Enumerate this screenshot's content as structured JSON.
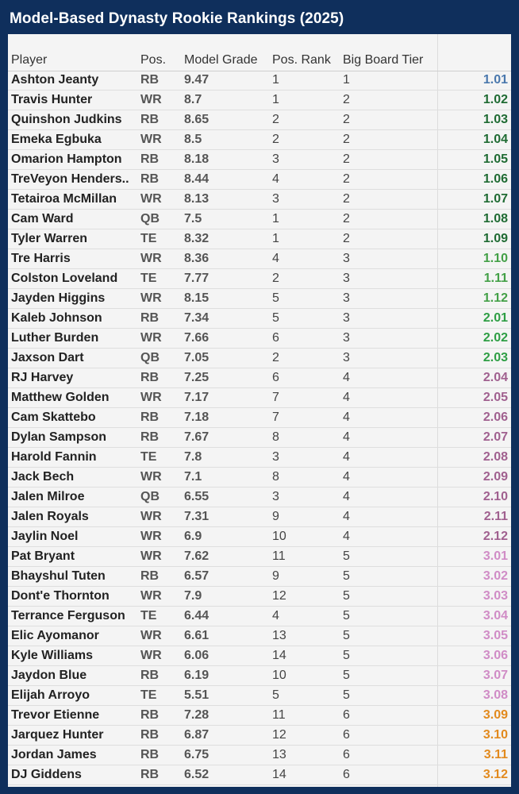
{
  "title": "Model-Based Dynasty Rookie Rankings (2025)",
  "columns": [
    "Player",
    "Pos.",
    "Model Grade",
    "Pos. Rank",
    "Big Board Tier",
    ""
  ],
  "pick_colors": {
    "1.01": "#4a78ad",
    "round1": "#1f6b33",
    "round1_late": "#43a047",
    "round2_early": "#2e9e44",
    "round2": "#a0608f",
    "round3": "#d08cc6",
    "round3_late": "#e28a1e"
  },
  "rows": [
    {
      "player": "Ashton Jeanty",
      "pos": "RB",
      "grade": "9.47",
      "pos_rank": "1",
      "tier": "1",
      "pick": "1.01",
      "color": "#4a78ad"
    },
    {
      "player": "Travis Hunter",
      "pos": "WR",
      "grade": "8.7",
      "pos_rank": "1",
      "tier": "2",
      "pick": "1.02",
      "color": "#1f6b33"
    },
    {
      "player": "Quinshon Judkins",
      "pos": "RB",
      "grade": "8.65",
      "pos_rank": "2",
      "tier": "2",
      "pick": "1.03",
      "color": "#1f6b33"
    },
    {
      "player": "Emeka Egbuka",
      "pos": "WR",
      "grade": "8.5",
      "pos_rank": "2",
      "tier": "2",
      "pick": "1.04",
      "color": "#1f6b33"
    },
    {
      "player": "Omarion Hampton",
      "pos": "RB",
      "grade": "8.18",
      "pos_rank": "3",
      "tier": "2",
      "pick": "1.05",
      "color": "#1f6b33"
    },
    {
      "player": "TreVeyon Henders..",
      "pos": "RB",
      "grade": "8.44",
      "pos_rank": "4",
      "tier": "2",
      "pick": "1.06",
      "color": "#1f6b33"
    },
    {
      "player": "Tetairoa McMillan",
      "pos": "WR",
      "grade": "8.13",
      "pos_rank": "3",
      "tier": "2",
      "pick": "1.07",
      "color": "#1f6b33"
    },
    {
      "player": "Cam Ward",
      "pos": "QB",
      "grade": "7.5",
      "pos_rank": "1",
      "tier": "2",
      "pick": "1.08",
      "color": "#1f6b33"
    },
    {
      "player": "Tyler Warren",
      "pos": "TE",
      "grade": "8.32",
      "pos_rank": "1",
      "tier": "2",
      "pick": "1.09",
      "color": "#1f6b33"
    },
    {
      "player": "Tre Harris",
      "pos": "WR",
      "grade": "8.36",
      "pos_rank": "4",
      "tier": "3",
      "pick": "1.10",
      "color": "#43a047"
    },
    {
      "player": "Colston Loveland",
      "pos": "TE",
      "grade": "7.77",
      "pos_rank": "2",
      "tier": "3",
      "pick": "1.11",
      "color": "#43a047"
    },
    {
      "player": "Jayden Higgins",
      "pos": "WR",
      "grade": "8.15",
      "pos_rank": "5",
      "tier": "3",
      "pick": "1.12",
      "color": "#43a047"
    },
    {
      "player": "Kaleb Johnson",
      "pos": "RB",
      "grade": "7.34",
      "pos_rank": "5",
      "tier": "3",
      "pick": "2.01",
      "color": "#2e9e44"
    },
    {
      "player": "Luther Burden",
      "pos": "WR",
      "grade": "7.66",
      "pos_rank": "6",
      "tier": "3",
      "pick": "2.02",
      "color": "#2e9e44"
    },
    {
      "player": "Jaxson Dart",
      "pos": "QB",
      "grade": "7.05",
      "pos_rank": "2",
      "tier": "3",
      "pick": "2.03",
      "color": "#2e9e44"
    },
    {
      "player": "RJ Harvey",
      "pos": "RB",
      "grade": "7.25",
      "pos_rank": "6",
      "tier": "4",
      "pick": "2.04",
      "color": "#a0608f"
    },
    {
      "player": "Matthew Golden",
      "pos": "WR",
      "grade": "7.17",
      "pos_rank": "7",
      "tier": "4",
      "pick": "2.05",
      "color": "#a0608f"
    },
    {
      "player": "Cam Skattebo",
      "pos": "RB",
      "grade": "7.18",
      "pos_rank": "7",
      "tier": "4",
      "pick": "2.06",
      "color": "#a0608f"
    },
    {
      "player": "Dylan Sampson",
      "pos": "RB",
      "grade": "7.67",
      "pos_rank": "8",
      "tier": "4",
      "pick": "2.07",
      "color": "#a0608f"
    },
    {
      "player": "Harold Fannin",
      "pos": "TE",
      "grade": "7.8",
      "pos_rank": "3",
      "tier": "4",
      "pick": "2.08",
      "color": "#a0608f"
    },
    {
      "player": "Jack Bech",
      "pos": "WR",
      "grade": "7.1",
      "pos_rank": "8",
      "tier": "4",
      "pick": "2.09",
      "color": "#a0608f"
    },
    {
      "player": "Jalen Milroe",
      "pos": "QB",
      "grade": "6.55",
      "pos_rank": "3",
      "tier": "4",
      "pick": "2.10",
      "color": "#a0608f"
    },
    {
      "player": "Jalen Royals",
      "pos": "WR",
      "grade": "7.31",
      "pos_rank": "9",
      "tier": "4",
      "pick": "2.11",
      "color": "#a0608f"
    },
    {
      "player": "Jaylin Noel",
      "pos": "WR",
      "grade": "6.9",
      "pos_rank": "10",
      "tier": "4",
      "pick": "2.12",
      "color": "#a0608f"
    },
    {
      "player": "Pat Bryant",
      "pos": "WR",
      "grade": "7.62",
      "pos_rank": "11",
      "tier": "5",
      "pick": "3.01",
      "color": "#d08cc6"
    },
    {
      "player": "Bhayshul Tuten",
      "pos": "RB",
      "grade": "6.57",
      "pos_rank": "9",
      "tier": "5",
      "pick": "3.02",
      "color": "#d08cc6"
    },
    {
      "player": "Dont'e Thornton",
      "pos": "WR",
      "grade": "7.9",
      "pos_rank": "12",
      "tier": "5",
      "pick": "3.03",
      "color": "#d08cc6"
    },
    {
      "player": "Terrance Ferguson",
      "pos": "TE",
      "grade": "6.44",
      "pos_rank": "4",
      "tier": "5",
      "pick": "3.04",
      "color": "#d08cc6"
    },
    {
      "player": "Elic Ayomanor",
      "pos": "WR",
      "grade": "6.61",
      "pos_rank": "13",
      "tier": "5",
      "pick": "3.05",
      "color": "#d08cc6"
    },
    {
      "player": "Kyle Williams",
      "pos": "WR",
      "grade": "6.06",
      "pos_rank": "14",
      "tier": "5",
      "pick": "3.06",
      "color": "#d08cc6"
    },
    {
      "player": "Jaydon Blue",
      "pos": "RB",
      "grade": "6.19",
      "pos_rank": "10",
      "tier": "5",
      "pick": "3.07",
      "color": "#d08cc6"
    },
    {
      "player": "Elijah Arroyo",
      "pos": "TE",
      "grade": "5.51",
      "pos_rank": "5",
      "tier": "5",
      "pick": "3.08",
      "color": "#d08cc6"
    },
    {
      "player": "Trevor Etienne",
      "pos": "RB",
      "grade": "7.28",
      "pos_rank": "11",
      "tier": "6",
      "pick": "3.09",
      "color": "#e28a1e"
    },
    {
      "player": "Jarquez Hunter",
      "pos": "RB",
      "grade": "6.87",
      "pos_rank": "12",
      "tier": "6",
      "pick": "3.10",
      "color": "#e28a1e"
    },
    {
      "player": "Jordan James",
      "pos": "RB",
      "grade": "6.75",
      "pos_rank": "13",
      "tier": "6",
      "pick": "3.11",
      "color": "#e28a1e"
    },
    {
      "player": "DJ Giddens",
      "pos": "RB",
      "grade": "6.52",
      "pos_rank": "14",
      "tier": "6",
      "pick": "3.12",
      "color": "#e28a1e"
    }
  ]
}
